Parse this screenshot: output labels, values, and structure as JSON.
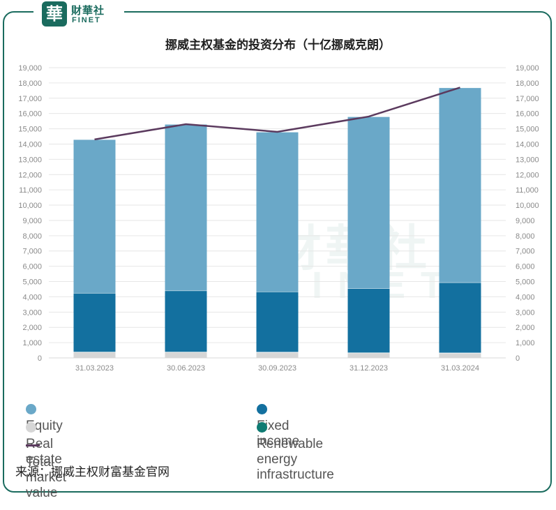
{
  "brand": {
    "badge": "華",
    "name_cn": "財華社",
    "name_en": "FINET"
  },
  "title": "挪威主权基金的投资分布（十亿挪威克朗）",
  "source": "来源：挪威主权财富基金官网",
  "colors": {
    "equity": "#6aa8c8",
    "fixed_income": "#13709f",
    "real_estate": "#d6d6d6",
    "renewable": "#0f7b73",
    "total_line": "#5b3a5e",
    "frame": "#1a6b5e"
  },
  "legend": [
    {
      "key": "equity",
      "label": "Equity",
      "kind": "dot"
    },
    {
      "key": "fixed_income",
      "label": "Fixed income",
      "kind": "dot"
    },
    {
      "key": "real_estate",
      "label": "Real estate",
      "kind": "dot"
    },
    {
      "key": "renewable",
      "label": "Renewable energy infrastructure",
      "kind": "dot"
    },
    {
      "key": "total_line",
      "label": "Total market value",
      "kind": "line"
    }
  ],
  "chart_data": {
    "type": "bar",
    "stacked": true,
    "categories": [
      "31.03.2023",
      "30.06.2023",
      "30.09.2023",
      "31.12.2023",
      "31.03.2024"
    ],
    "y_ticks": [
      "0",
      "1,000",
      "2,000",
      "3,000",
      "4,000",
      "5,000",
      "6,000",
      "7,000",
      "8,000",
      "9,000",
      "10,000",
      "11,000",
      "12,000",
      "13,000",
      "14,000",
      "15,000",
      "16,000",
      "17,000",
      "18,000",
      "19,000"
    ],
    "ylim": [
      0,
      19000
    ],
    "series": [
      {
        "key": "real_estate",
        "name": "Real estate",
        "values": [
          380,
          380,
          370,
          330,
          320
        ]
      },
      {
        "key": "renewable",
        "name": "Renewable energy infrastructure",
        "values": [
          20,
          20,
          20,
          20,
          20
        ]
      },
      {
        "key": "fixed_income",
        "name": "Fixed income",
        "values": [
          3850,
          4000,
          3950,
          4200,
          4600
        ]
      },
      {
        "key": "equity",
        "name": "Equity",
        "values": [
          10050,
          10900,
          10450,
          11250,
          12750
        ]
      }
    ],
    "line": {
      "key": "total_line",
      "name": "Total market value",
      "values": [
        14300,
        15300,
        14800,
        15800,
        17700
      ]
    },
    "grid": true,
    "legend_position": "bottom"
  }
}
